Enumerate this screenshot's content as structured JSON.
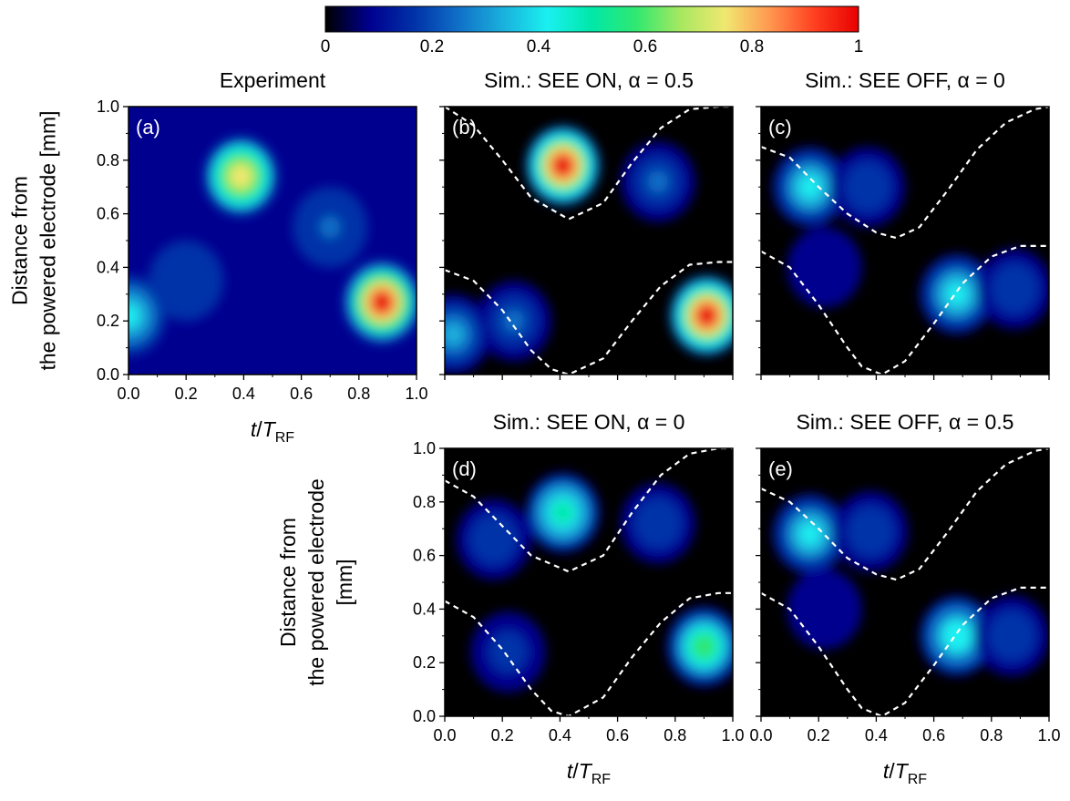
{
  "colorbar": {
    "ticks": [
      "0",
      "0.2",
      "0.4",
      "0.6",
      "0.8",
      "1"
    ],
    "range": [
      0,
      1
    ],
    "colors": [
      "#000000",
      "#00008f",
      "#0032a8",
      "#1070c8",
      "#1ab0dc",
      "#1af0f0",
      "#00e8a8",
      "#30e870",
      "#a8e860",
      "#f0e870",
      "#ff9850",
      "#ff4020",
      "#e80000"
    ]
  },
  "chart_data": [
    {
      "type": "heatmap",
      "panel_label": "(a)",
      "title": "Experiment",
      "ylabel": [
        "Distance from",
        "the powered electrode  [mm]"
      ],
      "xlabel": "t/T_RF",
      "xlim": [
        0,
        1
      ],
      "ylim": [
        0,
        1
      ],
      "xticks": [
        "0.0",
        "0.2",
        "0.4",
        "0.6",
        "0.8",
        "1.0"
      ],
      "yticks": [
        "0.0",
        "0.2",
        "0.4",
        "0.6",
        "0.8",
        "1.0"
      ],
      "background": 0.12,
      "peaks": [
        {
          "x": 0.39,
          "y": 0.74,
          "value": 0.72
        },
        {
          "x": 0.88,
          "y": 0.27,
          "value": 0.98
        },
        {
          "x": 0.0,
          "y": 0.22,
          "value": 0.38
        },
        {
          "x": 0.7,
          "y": 0.55,
          "value": 0.22
        },
        {
          "x": 0.2,
          "y": 0.35,
          "value": 0.2
        }
      ],
      "sheath_edges": []
    },
    {
      "type": "heatmap",
      "panel_label": "(b)",
      "title": "Sim.: SEE ON, α = 0.5",
      "xlim": [
        0,
        1
      ],
      "ylim": [
        0,
        1
      ],
      "background": 0.04,
      "peaks": [
        {
          "x": 0.41,
          "y": 0.78,
          "value": 0.98
        },
        {
          "x": 0.91,
          "y": 0.22,
          "value": 0.98
        },
        {
          "x": 0.74,
          "y": 0.72,
          "value": 0.22
        },
        {
          "x": 0.24,
          "y": 0.2,
          "value": 0.22
        },
        {
          "x": 0.03,
          "y": 0.15,
          "value": 0.3
        }
      ],
      "sheath_edges": [
        {
          "x": [
            0.0,
            0.1,
            0.2,
            0.3,
            0.43,
            0.55,
            0.65,
            0.75,
            0.85,
            0.95,
            1.0
          ],
          "y": [
            1.0,
            0.93,
            0.8,
            0.66,
            0.58,
            0.64,
            0.79,
            0.92,
            0.99,
            1.0,
            1.0
          ]
        },
        {
          "x": [
            0.0,
            0.1,
            0.2,
            0.3,
            0.37,
            0.43,
            0.55,
            0.65,
            0.75,
            0.85,
            0.95,
            1.0
          ],
          "y": [
            0.39,
            0.35,
            0.24,
            0.09,
            0.02,
            0.0,
            0.06,
            0.2,
            0.33,
            0.41,
            0.42,
            0.42
          ]
        }
      ]
    },
    {
      "type": "heatmap",
      "panel_label": "(c)",
      "title": "Sim.: SEE OFF, α = 0",
      "xlim": [
        0,
        1
      ],
      "ylim": [
        0,
        1
      ],
      "background": 0.04,
      "peaks": [
        {
          "x": 0.17,
          "y": 0.7,
          "value": 0.4
        },
        {
          "x": 0.37,
          "y": 0.7,
          "value": 0.2
        },
        {
          "x": 0.68,
          "y": 0.3,
          "value": 0.42
        },
        {
          "x": 0.88,
          "y": 0.32,
          "value": 0.2
        },
        {
          "x": 0.22,
          "y": 0.4,
          "value": 0.12
        }
      ],
      "sheath_edges": [
        {
          "x": [
            0.0,
            0.1,
            0.2,
            0.3,
            0.4,
            0.47,
            0.55,
            0.65,
            0.75,
            0.85,
            0.95,
            1.0
          ],
          "y": [
            0.85,
            0.81,
            0.7,
            0.6,
            0.53,
            0.51,
            0.55,
            0.69,
            0.84,
            0.94,
            0.99,
            1.0
          ]
        },
        {
          "x": [
            0.0,
            0.1,
            0.2,
            0.3,
            0.35,
            0.42,
            0.5,
            0.6,
            0.7,
            0.8,
            0.9,
            1.0
          ],
          "y": [
            0.46,
            0.4,
            0.26,
            0.1,
            0.03,
            0.0,
            0.05,
            0.19,
            0.34,
            0.44,
            0.48,
            0.48
          ]
        }
      ]
    },
    {
      "type": "heatmap",
      "panel_label": "(d)",
      "title": "Sim.: SEE ON, α = 0",
      "ylabel": [
        "Distance from",
        "the powered electrode",
        "[mm]"
      ],
      "xlabel": "t/T_RF",
      "xlim": [
        0,
        1
      ],
      "ylim": [
        0,
        1
      ],
      "xticks": [
        "0.0",
        "0.2",
        "0.4",
        "0.6",
        "0.8",
        "1.0"
      ],
      "yticks": [
        "0.0",
        "0.2",
        "0.4",
        "0.6",
        "0.8",
        "1.0"
      ],
      "background": 0.04,
      "peaks": [
        {
          "x": 0.41,
          "y": 0.76,
          "value": 0.5
        },
        {
          "x": 0.9,
          "y": 0.26,
          "value": 0.55
        },
        {
          "x": 0.74,
          "y": 0.72,
          "value": 0.2
        },
        {
          "x": 0.22,
          "y": 0.24,
          "value": 0.18
        },
        {
          "x": 0.17,
          "y": 0.66,
          "value": 0.2
        }
      ],
      "sheath_edges": [
        {
          "x": [
            0.0,
            0.1,
            0.2,
            0.3,
            0.43,
            0.55,
            0.65,
            0.75,
            0.85,
            0.95,
            1.0
          ],
          "y": [
            0.88,
            0.82,
            0.71,
            0.6,
            0.54,
            0.6,
            0.76,
            0.9,
            0.98,
            1.0,
            1.0
          ]
        },
        {
          "x": [
            0.0,
            0.1,
            0.2,
            0.3,
            0.37,
            0.43,
            0.55,
            0.65,
            0.75,
            0.85,
            0.95,
            1.0
          ],
          "y": [
            0.43,
            0.37,
            0.25,
            0.1,
            0.02,
            0.0,
            0.07,
            0.22,
            0.35,
            0.44,
            0.46,
            0.46
          ]
        }
      ]
    },
    {
      "type": "heatmap",
      "panel_label": "(e)",
      "title": "Sim.: SEE OFF, α = 0.5",
      "xlabel": "t/T_RF",
      "xlim": [
        0,
        1
      ],
      "ylim": [
        0,
        1
      ],
      "xticks": [
        "0.0",
        "0.2",
        "0.4",
        "0.6",
        "0.8",
        "1.0"
      ],
      "background": 0.04,
      "peaks": [
        {
          "x": 0.17,
          "y": 0.68,
          "value": 0.42
        },
        {
          "x": 0.38,
          "y": 0.69,
          "value": 0.2
        },
        {
          "x": 0.68,
          "y": 0.3,
          "value": 0.45
        },
        {
          "x": 0.87,
          "y": 0.3,
          "value": 0.2
        },
        {
          "x": 0.22,
          "y": 0.4,
          "value": 0.12
        }
      ],
      "sheath_edges": [
        {
          "x": [
            0.0,
            0.1,
            0.2,
            0.3,
            0.4,
            0.47,
            0.55,
            0.65,
            0.75,
            0.85,
            0.95,
            1.0
          ],
          "y": [
            0.85,
            0.8,
            0.7,
            0.59,
            0.53,
            0.51,
            0.55,
            0.69,
            0.84,
            0.94,
            0.99,
            1.0
          ]
        },
        {
          "x": [
            0.0,
            0.1,
            0.2,
            0.3,
            0.35,
            0.42,
            0.5,
            0.6,
            0.7,
            0.8,
            0.9,
            1.0
          ],
          "y": [
            0.46,
            0.4,
            0.26,
            0.1,
            0.03,
            0.0,
            0.05,
            0.19,
            0.34,
            0.44,
            0.48,
            0.48
          ]
        }
      ]
    }
  ]
}
